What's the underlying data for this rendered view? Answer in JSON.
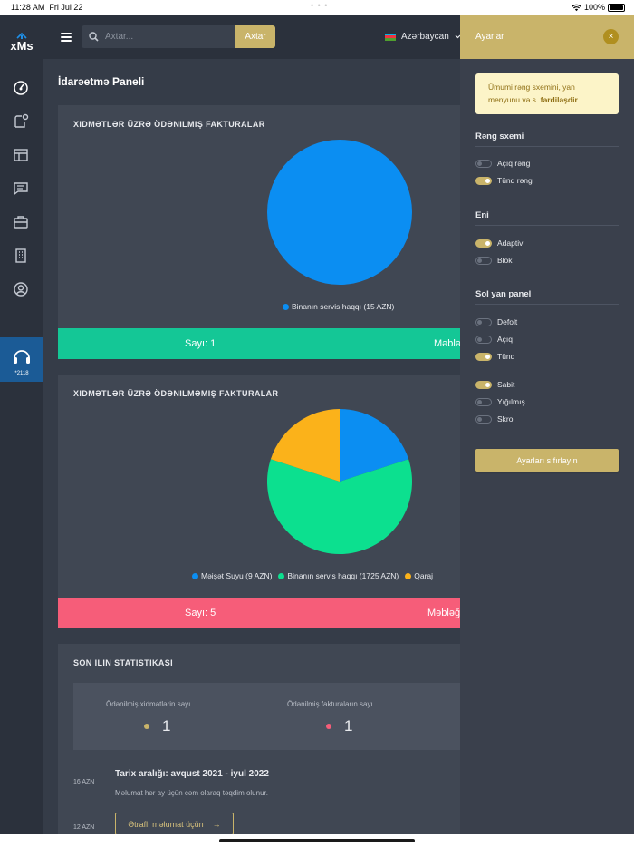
{
  "status": {
    "time": "11:28 AM",
    "date": "Fri Jul 22",
    "dots": "• • •",
    "battery": "100%"
  },
  "logo": {
    "text": "xMs"
  },
  "support": {
    "number": "*2118"
  },
  "topbar": {
    "search_placeholder": "Axtar...",
    "search_button": "Axtar",
    "language": "Azərbaycan"
  },
  "page": {
    "title": "İdarəetmə Paneli"
  },
  "paid_card": {
    "title": "XIDMƏTLƏR ÜZRƏ ÖDƏNILMIŞ FAKTURALAR",
    "legend": [
      {
        "label": "Binanın servis haqqı (15 AZN)",
        "color": "#0b8ef2"
      }
    ],
    "count_label": "Sayı: 1",
    "amount_label": "Məbləğ",
    "bar_color": "#14c796"
  },
  "unpaid_card": {
    "title": "XIDMƏTLƏR ÜZRƏ ÖDƏNILMƏMIŞ FAKTURALAR",
    "legend": [
      {
        "label": "Məişət Suyu (9 AZN)",
        "color": "#0b8ef2"
      },
      {
        "label": "Binanın servis haqqı (1725 AZN)",
        "color": "#0ce08f"
      },
      {
        "label": "Qaraj",
        "color": "#fbb21a"
      }
    ],
    "count_label": "Sayı: 5",
    "amount_label": "Məbləğ",
    "bar_color": "#f65d79"
  },
  "chart_data": [
    {
      "type": "pie",
      "title": "XIDMƏTLƏR ÜZRƏ ÖDƏNILMIŞ FAKTURALAR",
      "slices": [
        {
          "label": "Binanın servis haqqı (15 AZN)",
          "value": 1,
          "color": "#0b8ef2"
        }
      ]
    },
    {
      "type": "pie",
      "title": "XIDMƏTLƏR ÜZRƏ ÖDƏNILMƏMIŞ FAKTURALAR",
      "slices": [
        {
          "label": "Məişət Suyu (9 AZN)",
          "value": 1,
          "color": "#0b8ef2"
        },
        {
          "label": "Binanın servis haqqı (1725 AZN)",
          "value": 3,
          "color": "#0ce08f"
        },
        {
          "label": "Qaraj",
          "value": 1,
          "color": "#fbb21a"
        }
      ]
    }
  ],
  "stats_card": {
    "title": "SON ILIN STATISTIKASI",
    "stats": [
      {
        "label": "Ödənilmiş xidmətlərin sayı",
        "value": "1",
        "dot_color": "#c9b46a"
      },
      {
        "label": "Ödənilmiş fakturaların sayı",
        "value": "1",
        "dot_color": "#f65d79"
      }
    ],
    "axis_labels": [
      "16 AZN",
      "12 AZN"
    ],
    "range_title": "Tarix aralığı: avqust 2021 - iyul 2022",
    "range_subtitle": "Məlumat hər ay üçün cəm olaraq təqdim olunur.",
    "more_button": "Ətraflı məlumat üçün",
    "more_arrow": "→"
  },
  "settings": {
    "title": "Ayarlar",
    "close": "×",
    "notice_text": "Ümumi rəng sxemini, yan menyunu və s.",
    "notice_bold": "fərdiləşdir",
    "color_scheme": {
      "title": "Rəng sxemi",
      "options": [
        {
          "label": "Açıq rəng",
          "on": false
        },
        {
          "label": "Tünd rəng",
          "on": true
        }
      ]
    },
    "width": {
      "title": "Eni",
      "options": [
        {
          "label": "Adaptiv",
          "on": true
        },
        {
          "label": "Blok",
          "on": false
        }
      ]
    },
    "side_panel": {
      "title": "Sol yan panel",
      "options": [
        {
          "label": "Defolt",
          "on": false
        },
        {
          "label": "Açıq",
          "on": false
        },
        {
          "label": "Tünd",
          "on": true
        }
      ],
      "modes": [
        {
          "label": "Sabit",
          "on": true
        },
        {
          "label": "Yığılmış",
          "on": false
        },
        {
          "label": "Skrol",
          "on": false
        }
      ]
    },
    "reset_button": "Ayarları sıfırlayın"
  }
}
